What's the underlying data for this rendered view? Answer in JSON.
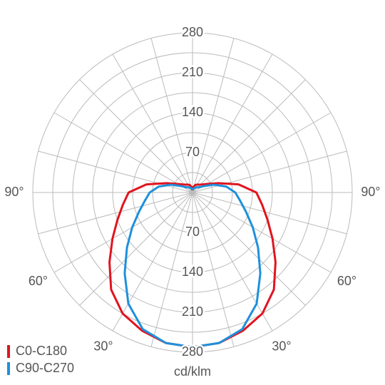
{
  "chart_data": {
    "type": "polar",
    "x": [
      0,
      10,
      20,
      30,
      40,
      50,
      60,
      70,
      80,
      90,
      100,
      110,
      120,
      130,
      140,
      150,
      160,
      170,
      180
    ],
    "series": [
      {
        "name": "C0-C180",
        "color": "#e0141e",
        "values": [
          271,
          268,
          258,
          245,
          222,
          190,
          162,
          140,
          124,
          112,
          82,
          48,
          30,
          22,
          18,
          16,
          14,
          10,
          4
        ]
      },
      {
        "name": "C90-C270",
        "color": "#1e90dc",
        "values": [
          271,
          268,
          255,
          225,
          185,
          150,
          122,
          100,
          85,
          75,
          60,
          40,
          22,
          14,
          12,
          10,
          8,
          6,
          5
        ]
      }
    ],
    "rlim": [
      0,
      280
    ],
    "rticks": [
      70,
      140,
      210,
      280
    ],
    "rgrid": [
      35,
      70,
      105,
      140,
      175,
      210,
      245,
      280
    ],
    "agrid": [
      0,
      15,
      30,
      45,
      60,
      75,
      90,
      105,
      120,
      135,
      150,
      165,
      180
    ],
    "angle_ticks": [
      {
        "value": 30,
        "label": "30°"
      },
      {
        "value": 60,
        "label": "60°"
      },
      {
        "value": 90,
        "label": "90°"
      }
    ],
    "unit": "cd/klm",
    "legend": "bottom-left"
  }
}
